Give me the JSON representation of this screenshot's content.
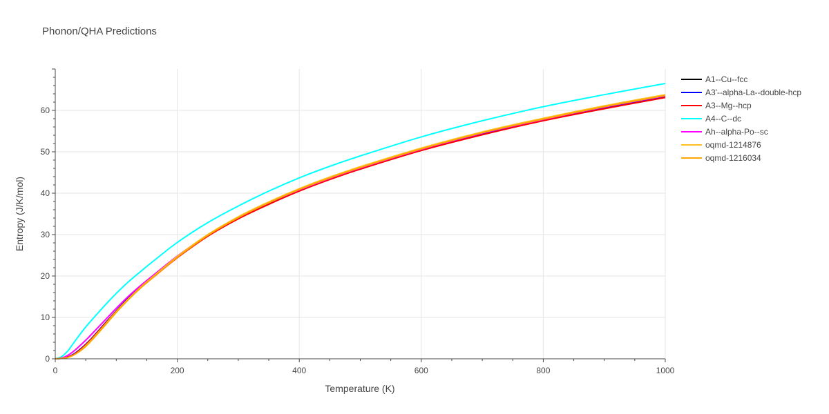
{
  "chart_data": {
    "type": "line",
    "title": "Phonon/QHA Predictions",
    "xlabel": "Temperature (K)",
    "ylabel": "Entropy (J/K/mol)",
    "xlim": [
      0,
      1000
    ],
    "ylim": [
      0,
      70
    ],
    "xticks": [
      0,
      200,
      400,
      600,
      800,
      1000
    ],
    "yticks": [
      0,
      10,
      20,
      30,
      40,
      50,
      60
    ],
    "grid": true,
    "legend_position": "right",
    "x": [
      0,
      10,
      20,
      30,
      40,
      50,
      60,
      80,
      100,
      120,
      140,
      160,
      200,
      250,
      300,
      350,
      400,
      450,
      500,
      600,
      700,
      800,
      900,
      1000
    ],
    "series": [
      {
        "name": "A1--Cu--fcc",
        "color": "#000000",
        "values": [
          0,
          0.1,
          0.4,
          1.1,
          2.2,
          3.5,
          5.0,
          8.3,
          11.6,
          14.7,
          17.4,
          19.8,
          24.6,
          29.8,
          34.0,
          37.6,
          40.7,
          43.5,
          46.0,
          50.5,
          54.4,
          57.7,
          60.7,
          63.4
        ]
      },
      {
        "name": "A3'--alpha-La--double-hcp",
        "color": "#0000ff",
        "values": [
          0,
          0.1,
          0.4,
          1.1,
          2.2,
          3.5,
          5.0,
          8.3,
          11.6,
          14.7,
          17.4,
          19.8,
          24.6,
          29.8,
          34.0,
          37.6,
          40.7,
          43.5,
          46.0,
          50.5,
          54.4,
          57.7,
          60.7,
          63.4
        ]
      },
      {
        "name": "A3--Mg--hcp",
        "color": "#ff0000",
        "values": [
          0,
          0.1,
          0.4,
          1.0,
          2.1,
          3.4,
          4.9,
          8.2,
          11.5,
          14.5,
          17.2,
          19.6,
          24.4,
          29.6,
          33.8,
          37.3,
          40.5,
          43.3,
          45.8,
          50.3,
          54.1,
          57.5,
          60.4,
          63.1
        ]
      },
      {
        "name": "A4--C--dc",
        "color": "#00ffff",
        "values": [
          0,
          0.5,
          1.8,
          3.8,
          5.8,
          7.7,
          9.4,
          12.7,
          15.8,
          18.6,
          21.1,
          23.5,
          28.1,
          32.9,
          36.9,
          40.5,
          43.7,
          46.5,
          49.0,
          53.6,
          57.5,
          60.9,
          63.8,
          66.5
        ]
      },
      {
        "name": "Ah--alpha-Po--sc",
        "color": "#ff00ff",
        "values": [
          0,
          0.2,
          0.8,
          1.8,
          3.1,
          4.5,
          6.0,
          9.1,
          12.2,
          15.1,
          17.7,
          20.1,
          24.8,
          29.9,
          34.1,
          37.7,
          40.8,
          43.6,
          46.1,
          50.6,
          54.5,
          57.8,
          60.8,
          63.5
        ]
      },
      {
        "name": "oqmd-1214876",
        "color": "#ffc020",
        "values": [
          0,
          0.1,
          0.3,
          0.9,
          1.9,
          3.2,
          4.7,
          8.0,
          11.4,
          14.5,
          17.3,
          19.8,
          24.7,
          30.0,
          34.3,
          37.9,
          41.1,
          43.9,
          46.4,
          50.9,
          54.8,
          58.1,
          61.1,
          63.8
        ]
      },
      {
        "name": "oqmd-1216034",
        "color": "#ffa500",
        "values": [
          0,
          0.1,
          0.3,
          0.9,
          1.8,
          3.0,
          4.5,
          7.8,
          11.2,
          14.3,
          17.1,
          19.6,
          24.5,
          29.8,
          34.1,
          37.7,
          40.9,
          43.7,
          46.2,
          50.7,
          54.6,
          57.9,
          60.9,
          63.6
        ]
      }
    ]
  }
}
